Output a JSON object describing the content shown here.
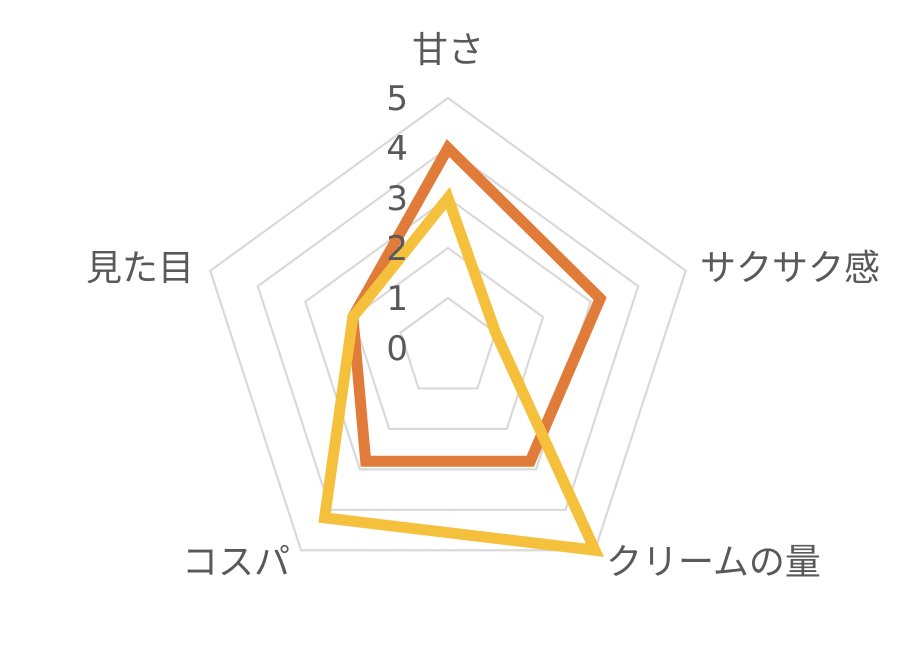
{
  "chart_data": {
    "type": "radar",
    "categories": [
      "甘さ",
      "サクサク感",
      "クリームの量",
      "コスパ",
      "見た目"
    ],
    "r_range": [
      0,
      5
    ],
    "r_ticks": [
      "0",
      "1",
      "2",
      "3",
      "4",
      "5"
    ],
    "grid": true,
    "legend": "none",
    "series": [
      {
        "values": [
          4,
          3.2,
          2.8,
          2.8,
          2
        ],
        "color": "#e07b39"
      },
      {
        "values": [
          3,
          1,
          5,
          4.2,
          2
        ],
        "color": "#f5c03c"
      }
    ]
  }
}
